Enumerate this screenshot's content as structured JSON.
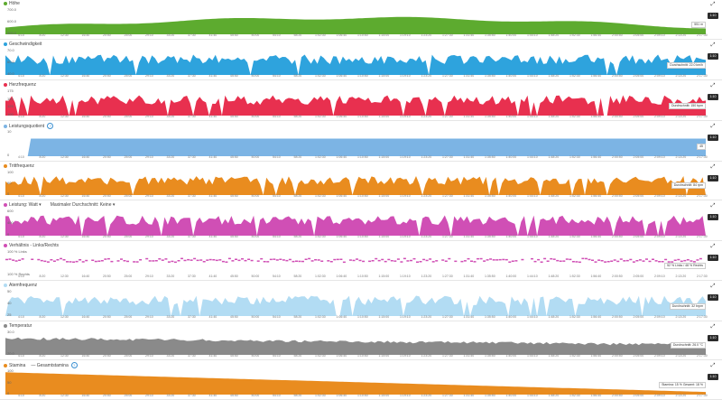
{
  "panels": [
    {
      "title": "Höhe",
      "color": "#5dab2f",
      "y_labels": [
        "700.0",
        "600.0",
        "500.0"
      ],
      "tooltip": "551 m",
      "zoom": "1:10"
    },
    {
      "title": "Geschwindigkeit",
      "color": "#2ea3dd",
      "y_labels": [
        "70.0",
        "60.0",
        "40.0"
      ],
      "tooltip": "Durchschnitt: 22.0 km/h",
      "zoom": "1:10"
    },
    {
      "title": "Herzfrequenz",
      "color": "#e8304f",
      "y_labels": [
        "175",
        "150",
        "125",
        "100"
      ],
      "tooltip": "Durchschnitt: 150 bpm",
      "zoom": "1:10"
    },
    {
      "title": "Leistungsquotient",
      "color": "#7cb4e4",
      "y_labels": [
        "10",
        "0"
      ],
      "tooltip": "45",
      "zoom": "1:10"
    },
    {
      "title": "Trittfrequenz",
      "color": "#e98c1f",
      "y_labels": [
        "100",
        "60",
        "0"
      ],
      "tooltip": "Durchschnitt: 84 rpm",
      "zoom": "1:10"
    },
    {
      "title": "Leistung: Watt ▾",
      "extra": "Maximaler Durchschnitt: Keine ▾",
      "color": "#d04fb5",
      "y_labels": [
        "600",
        "400",
        "0"
      ],
      "tooltip": "",
      "zoom": "1:10"
    },
    {
      "title": "Verhältnis - Links/Rechts",
      "color": "#d04fb5",
      "y_labels": [
        "100 % Links",
        "100 % Rechts"
      ],
      "tooltip": "52 % Links / 48 % Rechts",
      "zoom": "1:10"
    },
    {
      "title": "Atemfrequenz",
      "color": "#b2dcf3",
      "y_labels": [
        "50",
        "40",
        "25"
      ],
      "tooltip": "Durchschnitt: 32 brpm",
      "zoom": "1:10"
    },
    {
      "title": "Temperatur",
      "color": "#8a8a8a",
      "y_labels": [
        "30.0",
        "20.0"
      ],
      "tooltip": "Durchschnitt: 26.0 °C",
      "zoom": "1:10"
    },
    {
      "title": "Stamina",
      "legend": "— Gesamtstamina",
      "color": "#e98c1f",
      "y_labels": [
        "100",
        "50",
        "0"
      ],
      "tooltip": "Stamina: 15 %  Gesamt: 18 %",
      "zoom": "1:10"
    }
  ],
  "x_ticks": [
    "4:10",
    "8:20",
    "12:30",
    "16:40",
    "20:50",
    "25:00",
    "29:10",
    "33:20",
    "37:30",
    "41:40",
    "45:50",
    "50:00",
    "54:10",
    "58:20",
    "1:02:30",
    "1:06:40",
    "1:10:50",
    "1:15:00",
    "1:19:10",
    "1:23:20",
    "1:27:30",
    "1:31:40",
    "1:35:50",
    "1:40:00",
    "1:44:10",
    "1:48:20",
    "1:52:30",
    "1:56:40",
    "2:00:50",
    "2:05:00",
    "2:09:10",
    "2:13:20",
    "2:17:30"
  ],
  "icons": {
    "expand": "expand-arrows-icon",
    "info": "info-icon",
    "panel_dot": "series-dot-icon"
  }
}
